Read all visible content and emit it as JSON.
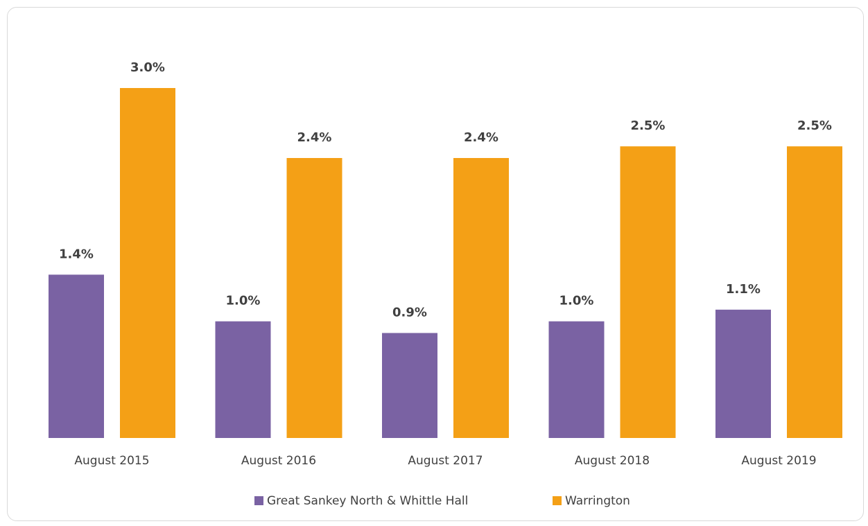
{
  "chart_data": {
    "type": "bar",
    "categories": [
      "August 2015",
      "August 2016",
      "August 2017",
      "August 2018",
      "August 2019"
    ],
    "series": [
      {
        "name": "Great Sankey North & Whittle Hall",
        "color": "#7a62a3",
        "values": [
          1.4,
          1.0,
          0.9,
          1.0,
          1.1
        ],
        "value_labels": [
          "1.4%",
          "1.0%",
          "0.9%",
          "1.0%",
          "1.1%"
        ]
      },
      {
        "name": "Warrington",
        "color": "#f4a016",
        "values": [
          3.0,
          2.4,
          2.4,
          2.5,
          2.5
        ],
        "value_labels": [
          "3.0%",
          "2.4%",
          "2.4%",
          "2.5%",
          "2.5%"
        ]
      }
    ],
    "legend": "bottom"
  }
}
